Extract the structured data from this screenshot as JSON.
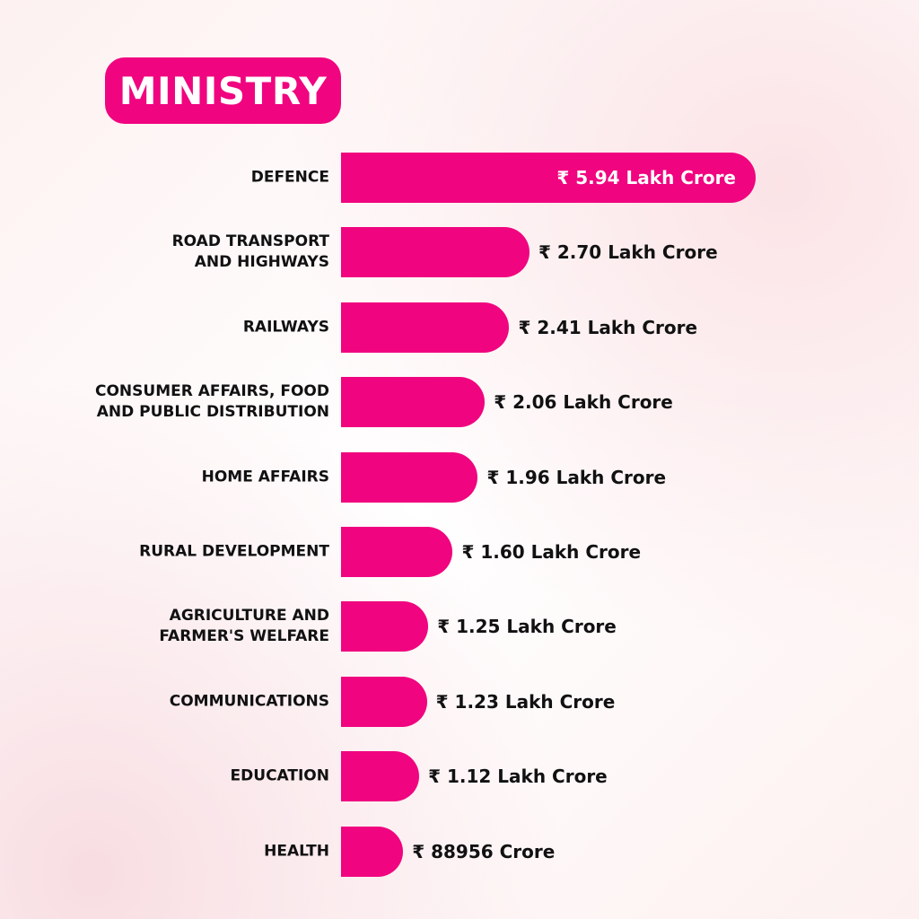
{
  "chart_data": {
    "type": "bar",
    "orientation": "horizontal",
    "title": "MINISTRY",
    "categories": [
      "DEFENCE",
      "ROAD TRANSPORT\nAND HIGHWAYS",
      "RAILWAYS",
      "CONSUMER AFFAIRS, FOOD\nAND PUBLIC DISTRIBUTION",
      "HOME AFFAIRS",
      "RURAL DEVELOPMENT",
      "AGRICULTURE AND\nFARMER'S WELFARE",
      "COMMUNICATIONS",
      "EDUCATION",
      "HEALTH"
    ],
    "values": [
      594000,
      270000,
      241000,
      206000,
      196000,
      160000,
      125000,
      123000,
      112000,
      88956
    ],
    "value_labels": [
      "₹ 5.94 Lakh Crore",
      "₹ 2.70 Lakh Crore",
      "₹ 2.41 Lakh Crore",
      "₹ 2.06 Lakh Crore",
      "₹ 1.96 Lakh Crore",
      "₹ 1.60 Lakh Crore",
      "₹ 1.25 Lakh Crore",
      "₹ 1.23 Lakh Crore",
      "₹ 1.12 Lakh Crore",
      "₹ 88956 Crore"
    ],
    "color": "#f0047f"
  }
}
